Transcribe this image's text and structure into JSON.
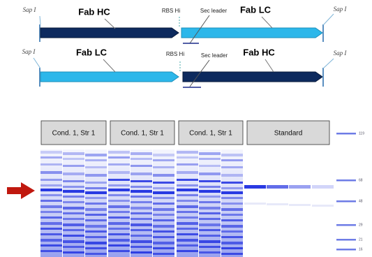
{
  "constructs": [
    {
      "left_site": "Sap I",
      "first_gene": "Fab HC",
      "rbs": "RBS Hi",
      "leader": "Sec leader",
      "second_gene": "Fab LC",
      "right_site": "Sap I"
    },
    {
      "left_site": "Sap I",
      "first_gene": "Fab LC",
      "rbs": "RBS Hi",
      "leader": "Sec leader",
      "second_gene": "Fab HC",
      "right_site": "Sap I"
    }
  ],
  "gel": {
    "lanes": [
      "Cond. 1, Str 1",
      "Cond. 1, Str 1",
      "Cond. 1, Str 1",
      "Standard"
    ],
    "ladder": [
      "119",
      "68",
      "48",
      "29",
      "21",
      "16"
    ]
  }
}
